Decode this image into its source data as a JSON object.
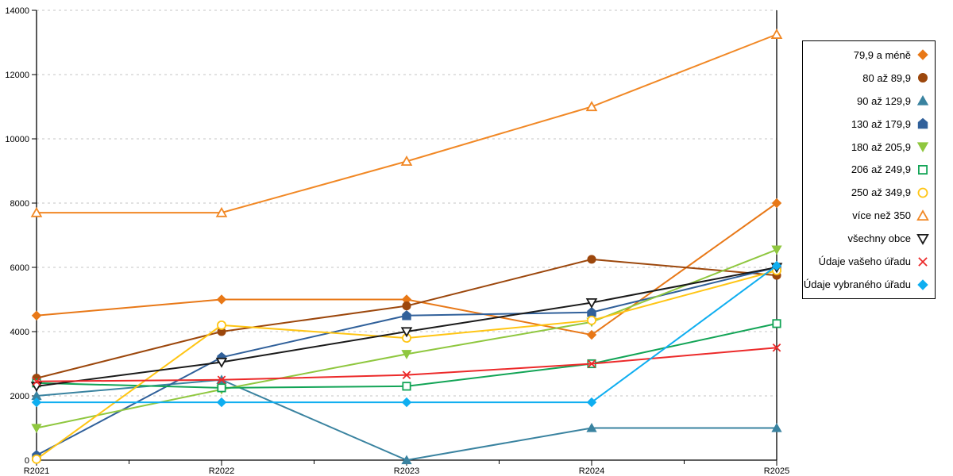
{
  "chart_data": {
    "type": "line",
    "title": "",
    "xlabel": "",
    "ylabel": "",
    "x_labels": [
      "R2021",
      "R2022",
      "R2023",
      "R2024",
      "R2025"
    ],
    "y_ticks": [
      0,
      2000,
      4000,
      6000,
      8000,
      10000,
      12000,
      14000
    ],
    "ylim": [
      0,
      14000
    ],
    "grid": "horizontal-dashed",
    "legend_position": "right",
    "series": [
      {
        "name": "79,9 a méně",
        "marker": "diamond",
        "filled": true,
        "color": "#E87817",
        "values": [
          4500,
          5000,
          5000,
          3900,
          8000
        ]
      },
      {
        "name": "80 až 89,9",
        "marker": "circle",
        "filled": true,
        "color": "#9C470C",
        "values": [
          2550,
          4000,
          4800,
          6250,
          5750
        ]
      },
      {
        "name": "90 až 129,9",
        "marker": "triangle-up",
        "filled": true,
        "color": "#3A83A0",
        "values": [
          2000,
          2500,
          0,
          1000,
          1000
        ]
      },
      {
        "name": "130 až 179,9",
        "marker": "pentagon",
        "filled": true,
        "color": "#30609A",
        "values": [
          150,
          3200,
          4500,
          4600,
          6000
        ]
      },
      {
        "name": "180 až 205,9",
        "marker": "triangle-down",
        "filled": true,
        "color": "#8FC73F",
        "values": [
          1000,
          2200,
          3300,
          4300,
          6550
        ]
      },
      {
        "name": "206 až 249,9",
        "marker": "square",
        "filled": false,
        "color": "#12A456",
        "values": [
          2400,
          2250,
          2300,
          3000,
          4250
        ]
      },
      {
        "name": "250 až 349,9",
        "marker": "circle",
        "filled": false,
        "color": "#FFC514",
        "values": [
          30,
          4200,
          3800,
          4350,
          5900
        ]
      },
      {
        "name": "více než 350",
        "marker": "triangle-up",
        "filled": false,
        "color": "#F18825",
        "values": [
          7700,
          7700,
          9300,
          11000,
          13250
        ]
      },
      {
        "name": "všechny obce",
        "marker": "triangle-down",
        "filled": false,
        "color": "#1A1A1A",
        "values": [
          2300,
          3050,
          4000,
          4900,
          6000
        ]
      },
      {
        "name": "Údaje vašeho úřadu",
        "marker": "x",
        "filled": false,
        "color": "#EC2A2A",
        "values": [
          2450,
          2500,
          2650,
          3000,
          3500
        ]
      },
      {
        "name": "Údaje vybraného úřadu",
        "marker": "diamond",
        "filled": true,
        "color": "#0FAEF0",
        "values": [
          1800,
          1800,
          1800,
          1800,
          6050
        ]
      }
    ]
  },
  "colors": {
    "axis": "#000000",
    "grid": "#C6C6C6",
    "background": "#FFFFFF"
  }
}
